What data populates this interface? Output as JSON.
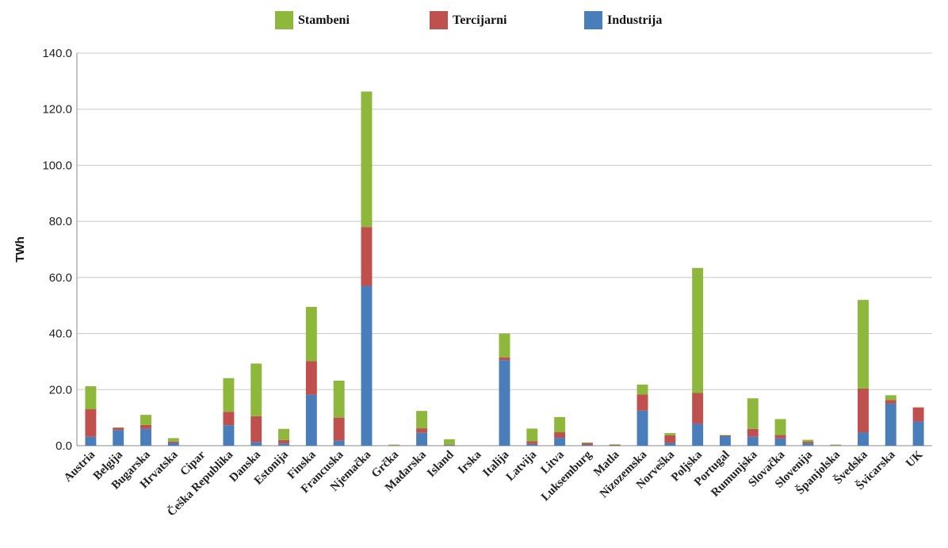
{
  "chart_data": {
    "type": "bar",
    "stacked": true,
    "title": "",
    "xlabel": "",
    "ylabel": "TWh",
    "ylim": [
      0,
      140
    ],
    "yticks": [
      "0.0",
      "20.0",
      "40.0",
      "60.0",
      "80.0",
      "100.0",
      "120.0",
      "140.0"
    ],
    "grid": "horizontal",
    "legend_position": "top",
    "categories": [
      "Austria",
      "Belgija",
      "Bugarska",
      "Hrvatska",
      "Cipar",
      "Češka Republika",
      "Danska",
      "Estonija",
      "Finska",
      "Francuska",
      "Njemačka",
      "Grčka",
      "Mađarska",
      "Island",
      "Irska",
      "Italija",
      "Latvija",
      "Litva",
      "Luksemburg",
      "Matla",
      "Nizozemska",
      "Norveška",
      "Poljska",
      "Portugal",
      "Rumunjska",
      "Slovačka",
      "Slovenija",
      "Španjolska",
      "Švedska",
      "Švicarska",
      "UK"
    ],
    "series": [
      {
        "name": "Industrija",
        "color": "#4a7ebb",
        "values": [
          3.2,
          5.6,
          6.0,
          1.0,
          0,
          7.3,
          1.3,
          0.8,
          18.2,
          1.8,
          57.0,
          0.1,
          4.6,
          0.2,
          0,
          30.5,
          0.6,
          2.8,
          0.3,
          0.1,
          12.5,
          1.0,
          7.8,
          3.4,
          3.2,
          2.6,
          0.8,
          0.1,
          4.8,
          15.0,
          8.6
        ]
      },
      {
        "name": "Tercijarni",
        "color": "#c0504d",
        "values": [
          9.8,
          0.8,
          1.4,
          0.5,
          0,
          4.8,
          9.2,
          1.2,
          12.0,
          8.2,
          21.0,
          0.1,
          1.6,
          0.1,
          0,
          1.0,
          1.0,
          2.0,
          0.7,
          0.2,
          5.8,
          2.7,
          11.0,
          0.3,
          2.8,
          1.2,
          0.6,
          0.1,
          15.6,
          1.3,
          5.0
        ]
      },
      {
        "name": "Stambeni",
        "color": "#8db83b",
        "values": [
          8.2,
          0.1,
          3.6,
          1.2,
          0,
          12.0,
          18.8,
          4.0,
          19.3,
          13.2,
          48.3,
          0.2,
          6.2,
          2.0,
          0,
          8.5,
          4.5,
          5.4,
          0.1,
          0.2,
          3.5,
          0.8,
          44.6,
          0.1,
          10.9,
          5.7,
          0.7,
          0.2,
          31.6,
          1.7,
          0.1
        ]
      }
    ]
  },
  "legend": [
    {
      "label": "Stambeni",
      "color": "#8db83b"
    },
    {
      "label": "Tercijarni",
      "color": "#c0504d"
    },
    {
      "label": "Industrija",
      "color": "#4a7ebb"
    }
  ]
}
